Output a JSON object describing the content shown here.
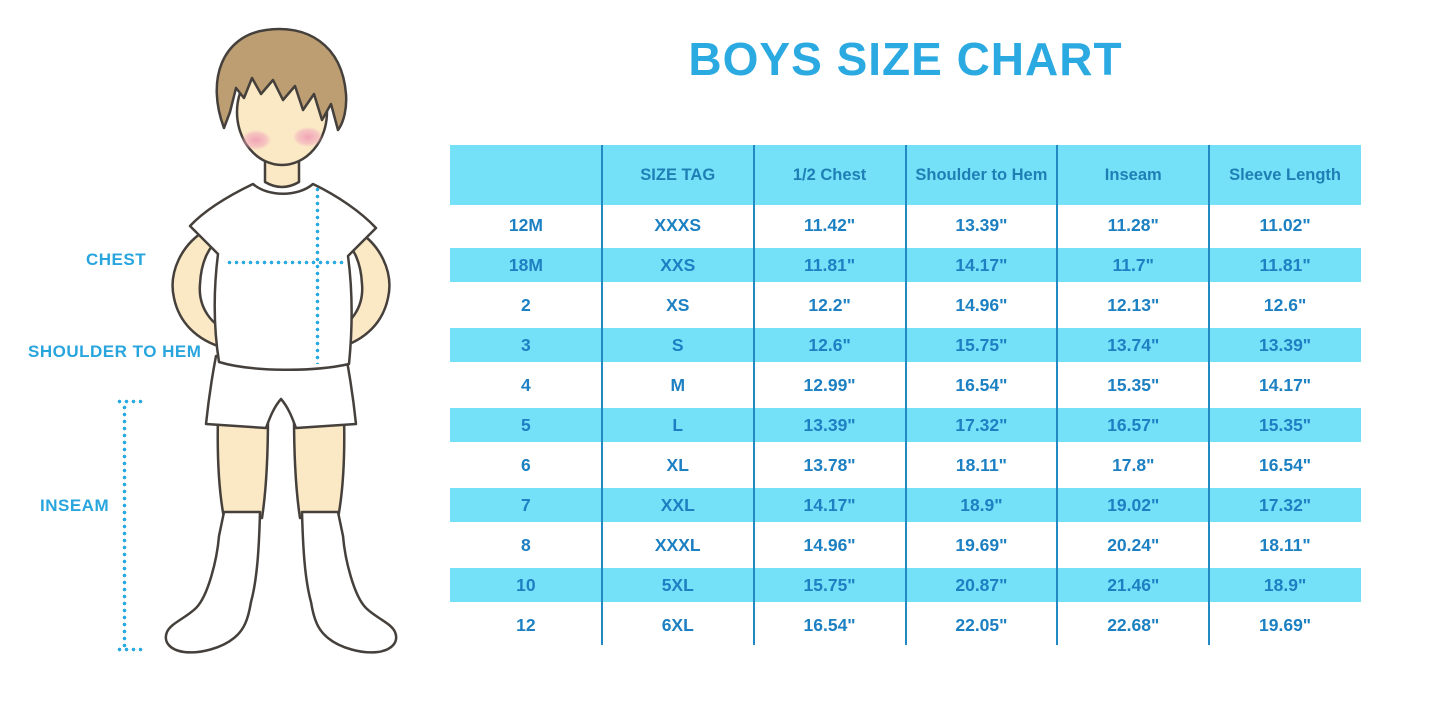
{
  "title": "BOYS SIZE CHART",
  "figure": {
    "labels": {
      "chest": "CHEST",
      "shoulder_to_hem": "SHOULDER TO HEM",
      "inseam": "INSEAM"
    }
  },
  "colors": {
    "title_blue": "#2BA9E1",
    "row_cyan": "#74E1F8",
    "table_text_blue": "#1C80C2",
    "divider_blue": "#2289C3",
    "label_cyan": "#29A5DE",
    "skin": "#FBE8C5",
    "hair": "#BD9E73",
    "cheek_pink": "#F2A9BC",
    "outline": "#45403B"
  },
  "chart_data": {
    "type": "table",
    "title": "BOYS SIZE CHART",
    "columns": [
      "",
      "SIZE TAG",
      "1/2 Chest",
      "Shoulder to Hem",
      "Inseam",
      "Sleeve Length"
    ],
    "rows": [
      [
        "12M",
        "XXXS",
        "11.42\"",
        "13.39\"",
        "11.28\"",
        "11.02\""
      ],
      [
        "18M",
        "XXS",
        "11.81\"",
        "14.17\"",
        "11.7\"",
        "11.81\""
      ],
      [
        "2",
        "XS",
        "12.2\"",
        "14.96\"",
        "12.13\"",
        "12.6\""
      ],
      [
        "3",
        "S",
        "12.6\"",
        "15.75\"",
        "13.74\"",
        "13.39\""
      ],
      [
        "4",
        "M",
        "12.99\"",
        "16.54\"",
        "15.35\"",
        "14.17\""
      ],
      [
        "5",
        "L",
        "13.39\"",
        "17.32\"",
        "16.57\"",
        "15.35\""
      ],
      [
        "6",
        "XL",
        "13.78\"",
        "18.11\"",
        "17.8\"",
        "16.54\""
      ],
      [
        "7",
        "XXL",
        "14.17\"",
        "18.9\"",
        "19.02\"",
        "17.32\""
      ],
      [
        "8",
        "XXXL",
        "14.96\"",
        "19.69\"",
        "20.24\"",
        "18.11\""
      ],
      [
        "10",
        "5XL",
        "15.75\"",
        "20.87\"",
        "21.46\"",
        "18.9\""
      ],
      [
        "12",
        "6XL",
        "16.54\"",
        "22.05\"",
        "22.68\"",
        "19.69\""
      ]
    ],
    "row_striping": "header and alternate rows cyan, others white",
    "grid": "vertical column dividers only"
  }
}
